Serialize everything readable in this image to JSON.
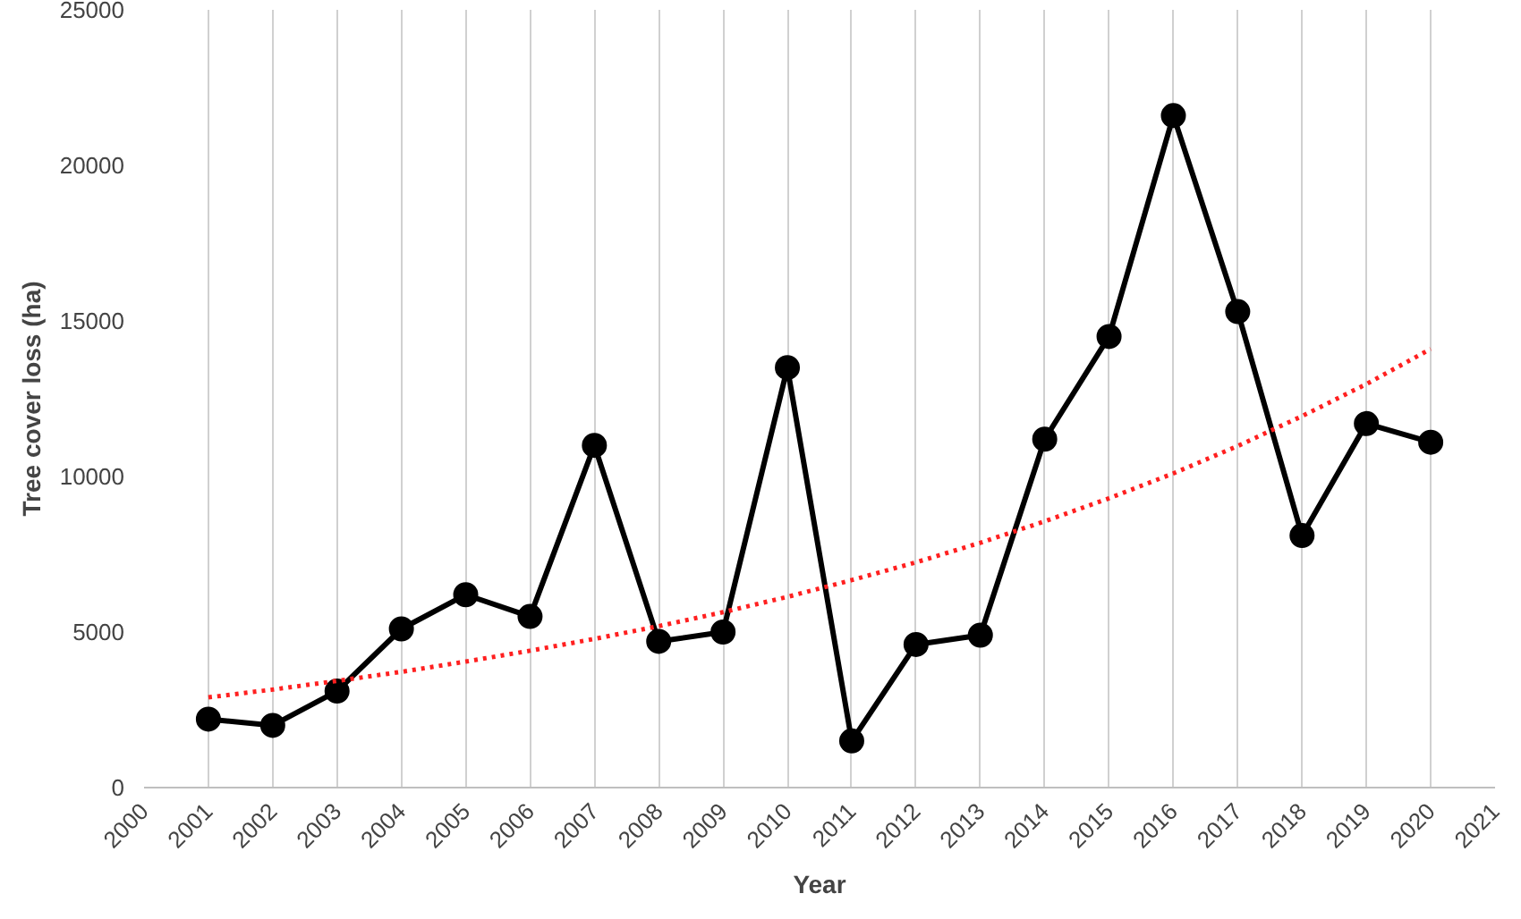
{
  "chart_data": {
    "type": "line",
    "xlabel": "Year",
    "ylabel": "Tree cover loss (ha)",
    "x": [
      2001,
      2002,
      2003,
      2004,
      2005,
      2006,
      2007,
      2008,
      2009,
      2010,
      2011,
      2012,
      2013,
      2014,
      2015,
      2016,
      2017,
      2018,
      2019,
      2020
    ],
    "xlim": [
      2000,
      2021
    ],
    "xticks": [
      2000,
      2001,
      2002,
      2003,
      2004,
      2005,
      2006,
      2007,
      2008,
      2009,
      2010,
      2011,
      2012,
      2013,
      2014,
      2015,
      2016,
      2017,
      2018,
      2019,
      2020,
      2021
    ],
    "ylim": [
      0,
      25000
    ],
    "yticks": [
      0,
      5000,
      10000,
      15000,
      20000,
      25000
    ],
    "grid": "x",
    "series": [
      {
        "color": "#000000",
        "marker": "circle",
        "line_style": "solid",
        "values": [
          2200,
          2000,
          3100,
          5100,
          6200,
          5500,
          11000,
          4700,
          5000,
          13500,
          1500,
          4600,
          4900,
          11200,
          14500,
          21600,
          15300,
          8100,
          11700,
          11100
        ]
      },
      {
        "color": "#ff2020",
        "marker": "none",
        "line_style": "dotted",
        "values": [
          2900,
          3150,
          3430,
          3720,
          4050,
          4400,
          4780,
          5190,
          5640,
          6130,
          6670,
          7240,
          7870,
          8560,
          9300,
          10100,
          10980,
          11940,
          12970,
          14100
        ]
      }
    ]
  }
}
